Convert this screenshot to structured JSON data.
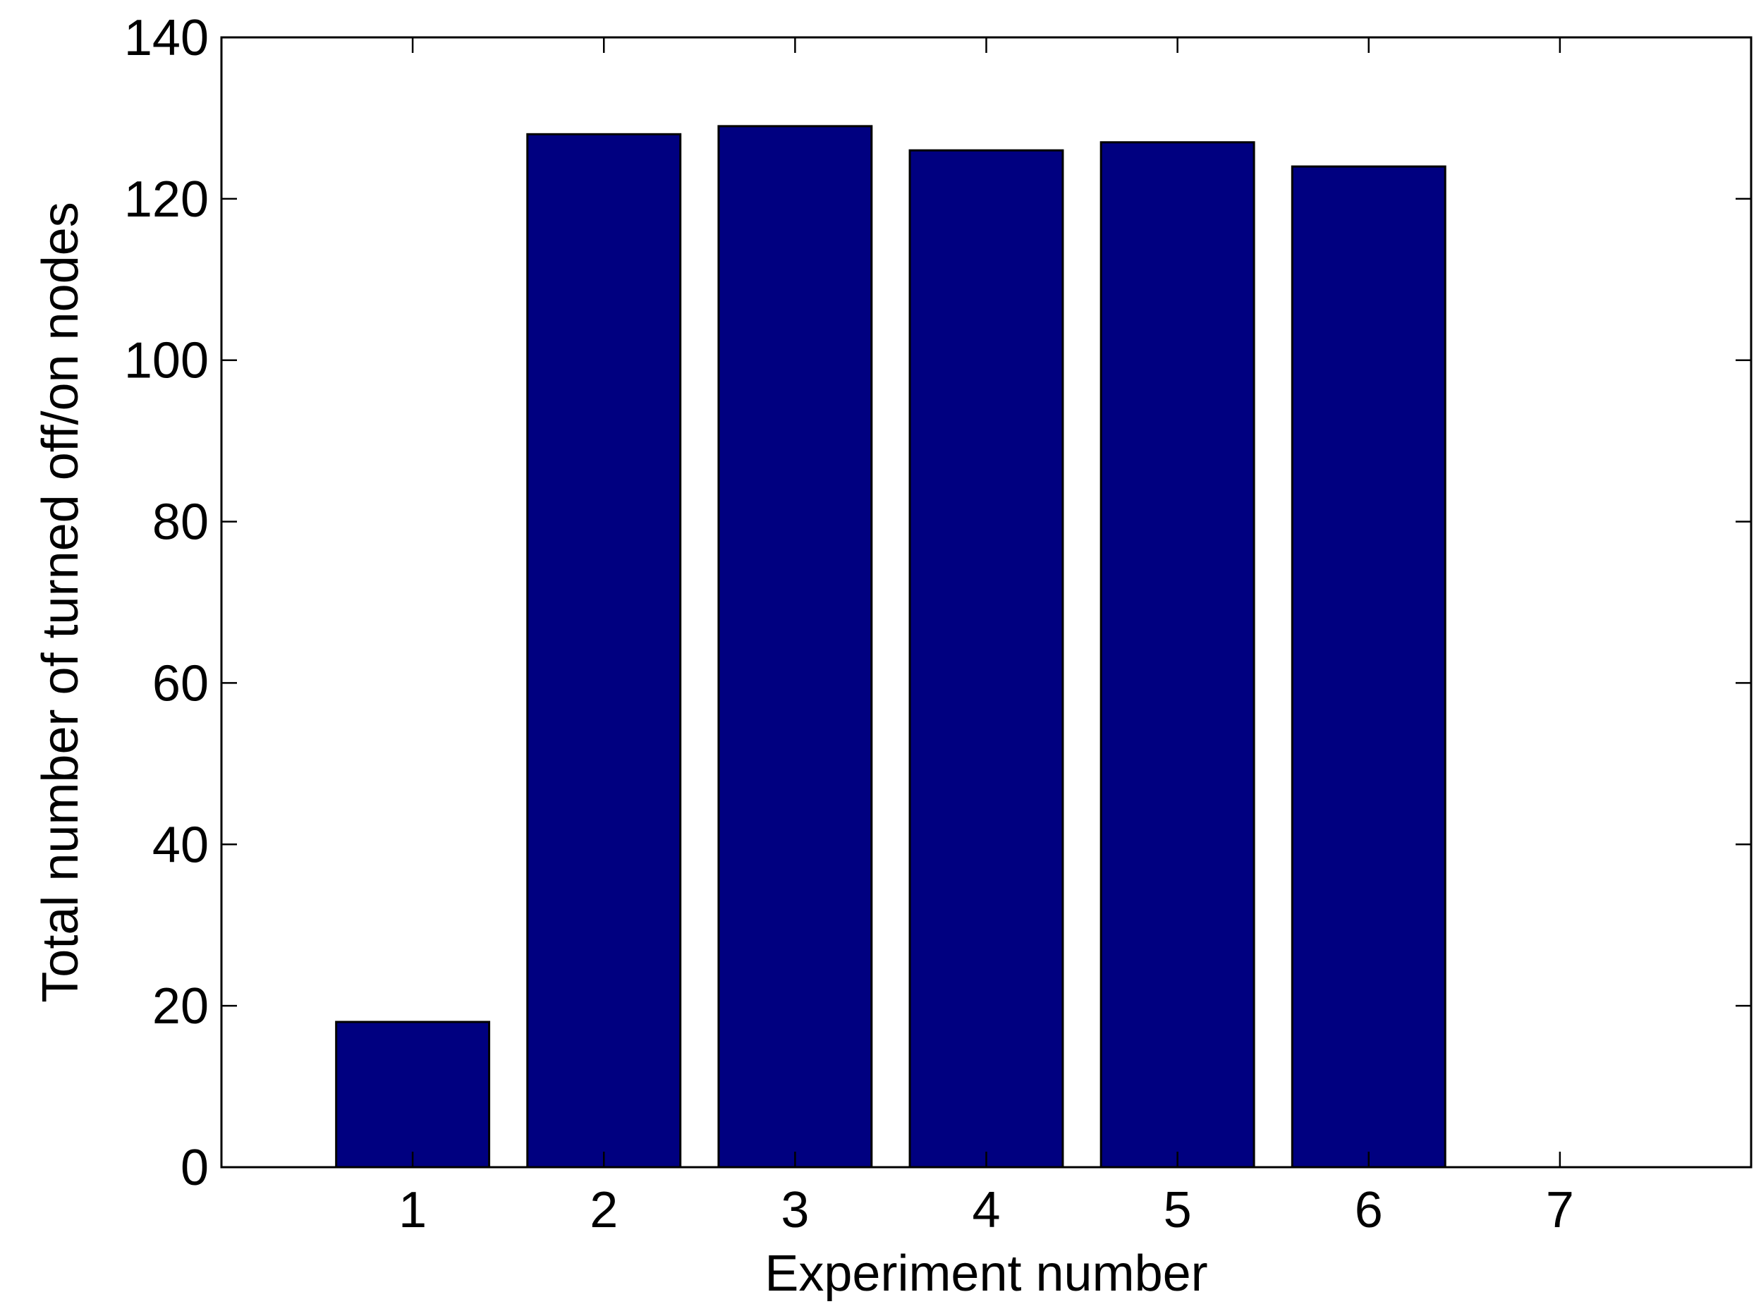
{
  "chart_data": {
    "type": "bar",
    "title": "",
    "xlabel": "Experiment number",
    "ylabel": "Total number of turned off/on nodes",
    "categories": [
      "1",
      "2",
      "3",
      "4",
      "5",
      "6",
      "7"
    ],
    "x": [
      1,
      2,
      3,
      4,
      5,
      6,
      7
    ],
    "values": [
      18,
      128,
      129,
      126,
      127,
      124,
      0
    ],
    "xlim": [
      0.0,
      8.0
    ],
    "ylim": [
      0,
      140
    ],
    "yticks": [
      0,
      20,
      40,
      60,
      80,
      100,
      120,
      140
    ],
    "xticks": [
      1,
      2,
      3,
      4,
      5,
      6,
      7
    ],
    "grid": false,
    "legend": "none",
    "colors": {
      "bar_fill": "#000080",
      "bar_edge": "#000000",
      "axes": "#000000",
      "background": "#ffffff"
    }
  }
}
